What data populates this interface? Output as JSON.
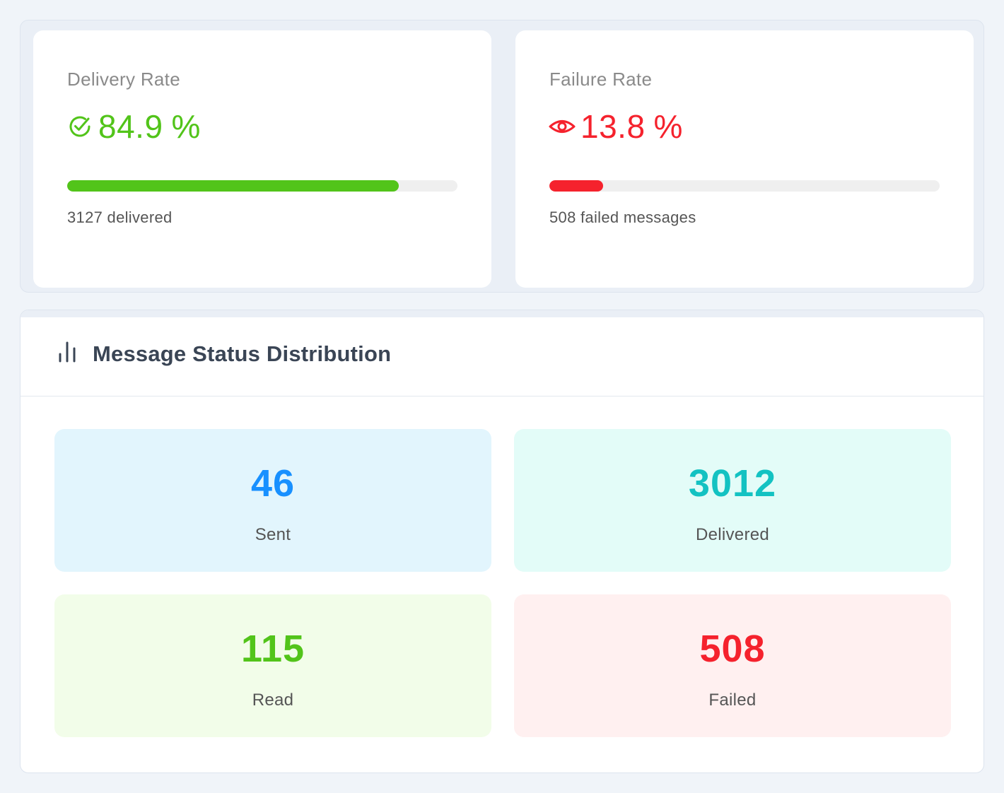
{
  "delivery": {
    "title": "Delivery Rate",
    "value": "84.9",
    "unit": "%",
    "progress_percent": 84.9,
    "subtitle": "3127 delivered",
    "icon": "check-circle-icon",
    "color": "#52c41a"
  },
  "failure": {
    "title": "Failure Rate",
    "value": "13.8",
    "unit": "%",
    "progress_percent": 13.8,
    "subtitle": "508 failed messages",
    "icon": "eye-icon",
    "color": "#f5222d"
  },
  "distribution": {
    "title": "Message Status Distribution",
    "icon": "bar-chart-icon",
    "tiles": [
      {
        "value": "46",
        "label": "Sent",
        "color": "#1890ff"
      },
      {
        "value": "3012",
        "label": "Delivered",
        "color": "#13c2c2"
      },
      {
        "value": "115",
        "label": "Read",
        "color": "#52c41a"
      },
      {
        "value": "508",
        "label": "Failed",
        "color": "#f5222d"
      }
    ]
  }
}
